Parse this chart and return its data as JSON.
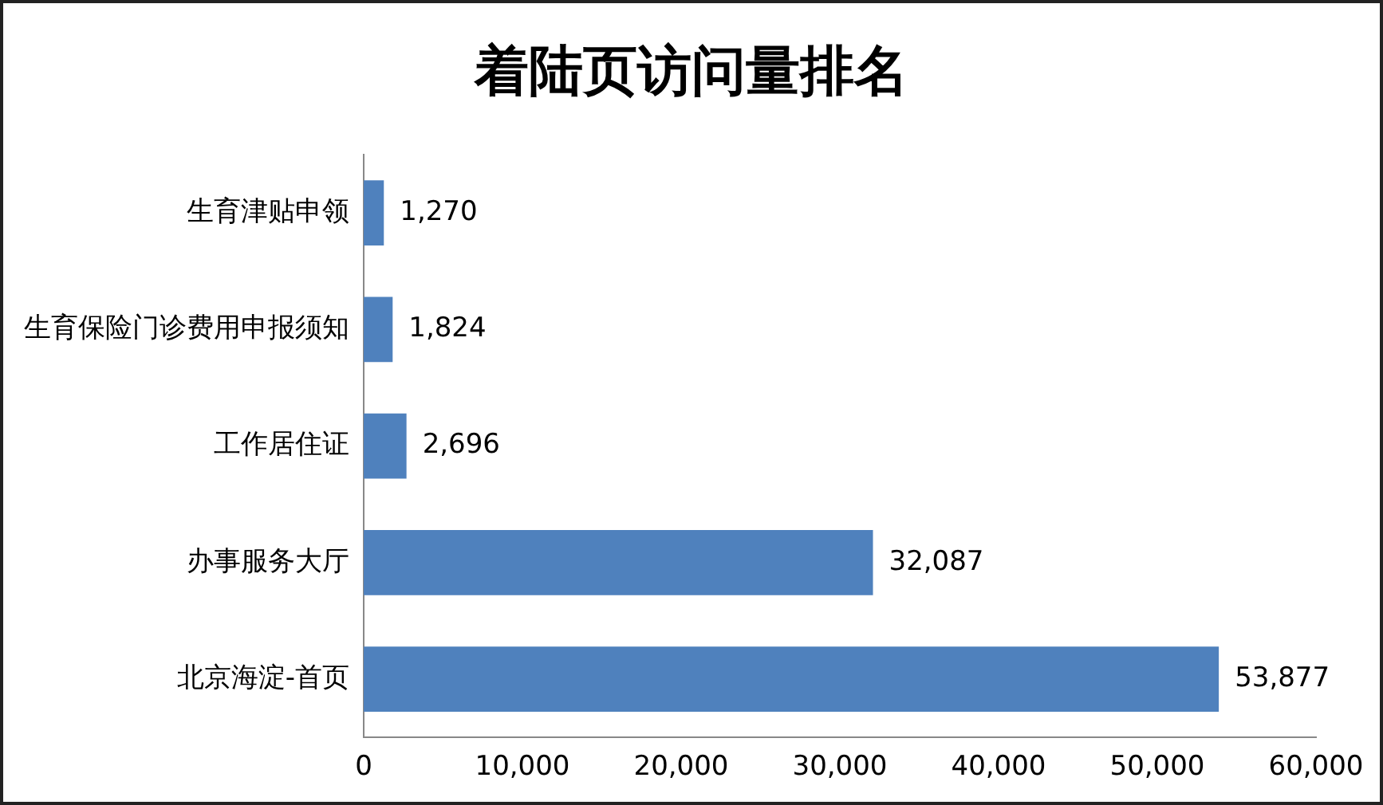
{
  "chart_data": {
    "type": "bar",
    "orientation": "horizontal",
    "title": "着陆页访问量排名",
    "categories": [
      "生育津贴申领",
      "生育保险门诊费用申报须知",
      "工作居住证",
      "办事服务大厅",
      "北京海淀-首页"
    ],
    "values": [
      1270,
      1824,
      2696,
      32087,
      53877
    ],
    "value_labels": [
      "1,270",
      "1,824",
      "2,696",
      "32,087",
      "53,877"
    ],
    "color": "#4f81bd",
    "xlim": [
      0,
      60000
    ],
    "xticks": [
      0,
      {
        "value": 10000,
        "label": "10,000"
      },
      {
        "value": 20000,
        "label": "20,000"
      },
      {
        "value": 30000,
        "label": "30,000"
      },
      {
        "value": 40000,
        "label": "40,000"
      },
      {
        "value": 50000,
        "label": "50,000"
      },
      {
        "value": 60000,
        "label": "60,000"
      }
    ],
    "grid": false,
    "legend": false
  }
}
